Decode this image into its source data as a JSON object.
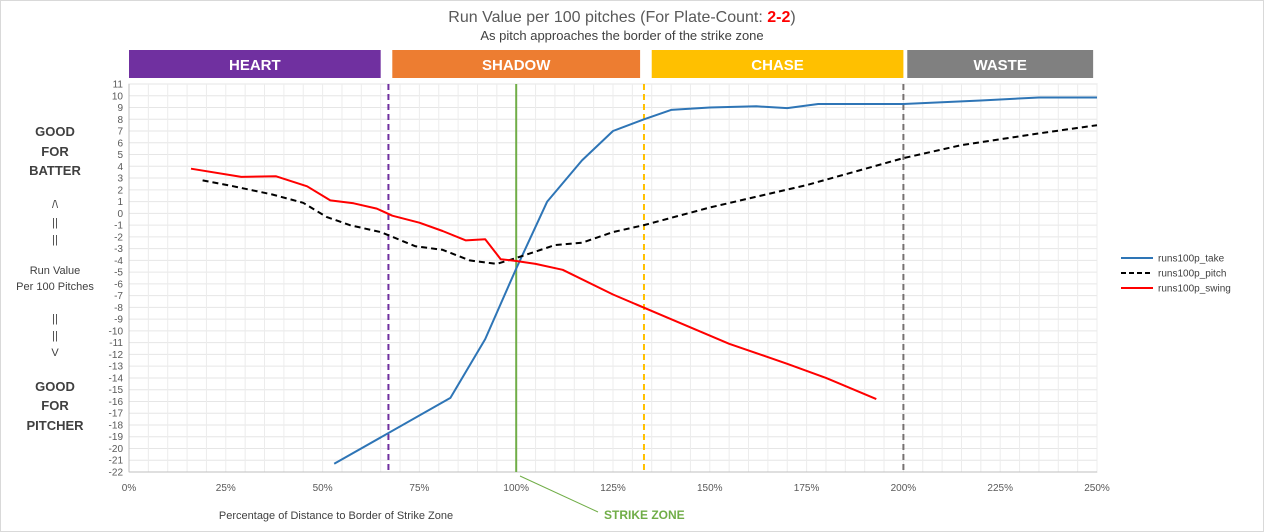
{
  "chart_data": {
    "type": "line",
    "title_prefix": "Run Value per 100 pitches (For Plate-Count: ",
    "title_count": "2-2",
    "title_suffix": ")",
    "subtitle": "As pitch approaches the border of the strike zone",
    "xlabel": "Percentage of Distance to Border of Strike Zone",
    "ylabel_lines": [
      "Run Value",
      "Per 100 Pitches"
    ],
    "xlim": [
      0,
      250
    ],
    "ylim": [
      -22,
      11
    ],
    "x_ticks": [
      0,
      25,
      50,
      75,
      100,
      125,
      150,
      175,
      200,
      225,
      250
    ],
    "x_tick_labels": [
      "0%",
      "25%",
      "50%",
      "75%",
      "100%",
      "125%",
      "150%",
      "175%",
      "200%",
      "225%",
      "250%"
    ],
    "y_ticks": [
      11,
      10,
      9,
      8,
      7,
      6,
      5,
      4,
      3,
      2,
      1,
      0,
      -1,
      -2,
      -3,
      -4,
      -5,
      -6,
      -7,
      -8,
      -9,
      -10,
      -11,
      -12,
      -13,
      -14,
      -15,
      -16,
      -17,
      -18,
      -19,
      -20,
      -21,
      -22
    ],
    "zones": [
      {
        "label": "HEART",
        "color": "#7030a0",
        "x_start": 0,
        "x_end": 65
      },
      {
        "label": "SHADOW",
        "color": "#ed7d31",
        "x_start": 68,
        "x_end": 132
      },
      {
        "label": "CHASE",
        "color": "#ffc000",
        "x_start": 135,
        "x_end": 200
      },
      {
        "label": "WASTE",
        "color": "#808080",
        "x_start": 201,
        "x_end": 249
      }
    ],
    "reference_lines": [
      {
        "name": "heart-shadow-boundary",
        "x": 67,
        "color": "#7030a0",
        "dashed": true
      },
      {
        "name": "strike-zone-line",
        "x": 100,
        "color": "#70ad47",
        "dashed": false
      },
      {
        "name": "shadow-chase-boundary",
        "x": 133,
        "color": "#ffc000",
        "dashed": true
      },
      {
        "name": "chase-waste-boundary",
        "x": 200,
        "color": "#767171",
        "dashed": true
      }
    ],
    "left_annotations": {
      "batter": [
        "GOOD",
        "FOR",
        "BATTER"
      ],
      "pitcher": [
        "GOOD",
        "FOR",
        "PITCHER"
      ],
      "arrow_up": [
        "/\\",
        "||",
        "||"
      ],
      "arrow_down": [
        "||",
        "||",
        "V"
      ]
    },
    "strike_zone_label": "STRIKE ZONE",
    "strike_zone_label_color": "#70ad47",
    "legend_position": "right",
    "series": [
      {
        "name": "runs100p_take",
        "legend_label": "runs100p_take",
        "color": "#2e75b6",
        "dashed": false,
        "x": [
          53,
          83,
          92,
          100,
          108,
          117,
          125,
          133,
          140,
          150,
          162,
          170,
          178,
          190,
          200,
          220,
          235,
          250
        ],
        "y": [
          -21.3,
          -15.7,
          -10.7,
          -4.7,
          1.0,
          4.5,
          7.0,
          8.0,
          8.8,
          9.0,
          9.1,
          8.95,
          9.3,
          9.3,
          9.3,
          9.6,
          9.85,
          9.85
        ]
      },
      {
        "name": "runs100p_pitch",
        "legend_label": "runs100p_pitch",
        "color": "#000000",
        "dashed": true,
        "x": [
          19,
          27,
          37,
          45,
          51,
          57,
          65,
          74,
          81,
          88,
          95,
          100,
          110,
          117,
          125,
          133,
          150,
          175,
          200,
          215,
          235,
          250
        ],
        "y": [
          2.8,
          2.3,
          1.6,
          0.9,
          -0.3,
          -1.0,
          -1.6,
          -2.8,
          -3.1,
          -4.0,
          -4.3,
          -3.8,
          -2.7,
          -2.5,
          -1.6,
          -1.0,
          0.5,
          2.4,
          4.7,
          5.8,
          6.8,
          7.5
        ]
      },
      {
        "name": "runs100p_swing",
        "legend_label": "runs100p_swing",
        "color": "#ff0000",
        "dashed": false,
        "x": [
          16,
          29,
          38,
          46,
          52,
          58,
          64,
          68,
          75,
          81,
          87,
          92,
          96,
          100,
          105,
          112,
          125,
          140,
          155,
          170,
          180,
          193
        ],
        "y": [
          3.8,
          3.1,
          3.15,
          2.3,
          1.1,
          0.85,
          0.4,
          -0.2,
          -0.8,
          -1.5,
          -2.3,
          -2.2,
          -3.9,
          -4.05,
          -4.3,
          -4.8,
          -6.9,
          -9.0,
          -11.1,
          -12.8,
          -14.0,
          -15.8
        ]
      }
    ]
  }
}
